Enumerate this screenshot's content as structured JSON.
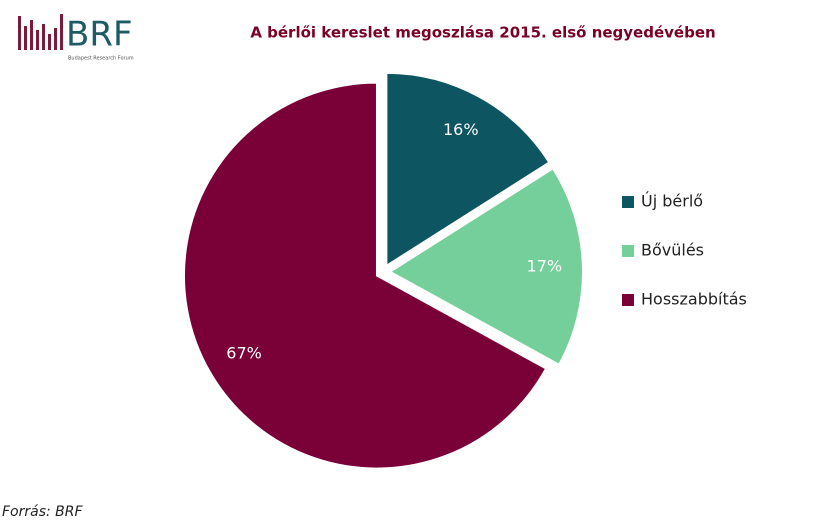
{
  "logo": {
    "text": "BRF",
    "subtitle": "Budapest Research Forum"
  },
  "chart_data": {
    "type": "pie",
    "title": "A bérlői kereslet megoszlása 2015. első negyedévében",
    "categories": [
      "Új bérlő",
      "Bővülés",
      "Hosszabbítás"
    ],
    "values": [
      16,
      17,
      67
    ],
    "value_labels": [
      "16%",
      "17%",
      "67%"
    ],
    "colors": [
      "#0d5560",
      "#74cf9a",
      "#7a0038"
    ],
    "legend": "right",
    "source": "Forrás: BRF"
  }
}
